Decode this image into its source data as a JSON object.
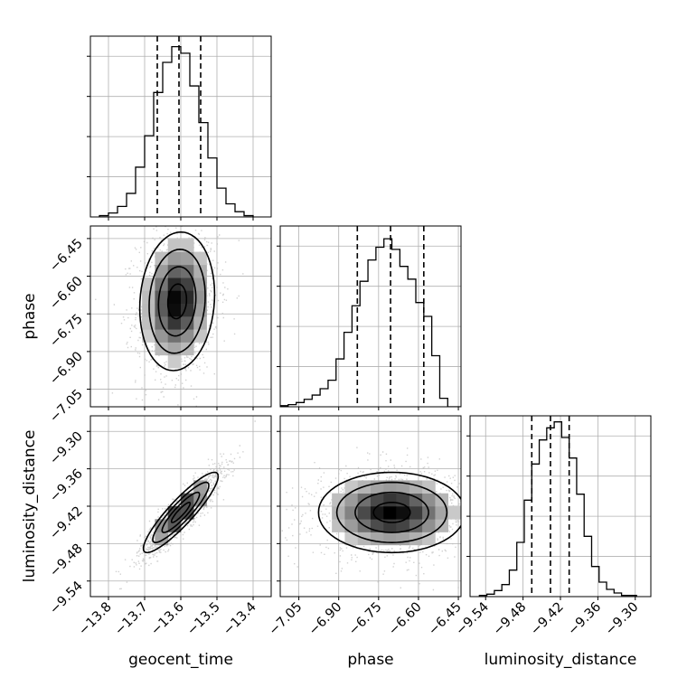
{
  "figure": {
    "type": "corner-plot",
    "parameters": [
      "geocent_time",
      "phase",
      "luminosity_distance"
    ],
    "axis_labels": {
      "x": [
        "geocent_time",
        "phase",
        "luminosity_distance"
      ],
      "y": [
        "phase",
        "luminosity_distance"
      ]
    },
    "colors": {
      "line": "#000000",
      "grid": "#b0b0b0",
      "scatter": "#bdbdbd"
    }
  },
  "chart_data": [
    {
      "type": "histogram",
      "panel": "geocent_time-marginal",
      "param": "geocent_time",
      "xlim": [
        -13.85,
        -13.35
      ],
      "xticks": [
        -13.8,
        -13.7,
        -13.6,
        -13.5,
        -13.4
      ],
      "bin_edges": [
        -13.825,
        -13.8,
        -13.775,
        -13.75,
        -13.725,
        -13.7,
        -13.675,
        -13.65,
        -13.625,
        -13.6,
        -13.575,
        -13.55,
        -13.525,
        -13.5,
        -13.475,
        -13.45,
        -13.425,
        -13.4
      ],
      "counts": [
        1,
        3,
        8,
        18,
        38,
        62,
        95,
        118,
        130,
        125,
        100,
        72,
        45,
        22,
        10,
        4,
        1
      ],
      "quantiles": [
        -13.665,
        -13.605,
        -13.545
      ],
      "ylim": [
        0,
        138
      ],
      "grid": true
    },
    {
      "type": "scatter-contour",
      "panel": "phase-vs-geocent_time",
      "x_param": "geocent_time",
      "y_param": "phase",
      "xlim": [
        -13.85,
        -13.35
      ],
      "ylim": [
        -7.12,
        -6.4
      ],
      "xticks": [
        -13.8,
        -13.7,
        -13.6,
        -13.5,
        -13.4
      ],
      "yticks": [
        -7.05,
        -6.9,
        -6.75,
        -6.6,
        -6.45
      ],
      "center": [
        -13.61,
        -6.7
      ],
      "sigma": [
        0.045,
        0.12
      ],
      "correlation": 0.1,
      "grid": true
    },
    {
      "type": "histogram",
      "panel": "phase-marginal",
      "param": "phase",
      "xlim": [
        -7.12,
        -6.44
      ],
      "xticks": [
        -7.05,
        -6.9,
        -6.75,
        -6.6,
        -6.45
      ],
      "bin_edges": [
        -7.12,
        -7.09,
        -7.06,
        -7.03,
        -7.0,
        -6.97,
        -6.94,
        -6.91,
        -6.88,
        -6.85,
        -6.82,
        -6.79,
        -6.76,
        -6.73,
        -6.7,
        -6.67,
        -6.64,
        -6.61,
        -6.58,
        -6.55,
        -6.52,
        -6.49,
        -6.46,
        -6.44
      ],
      "counts": [
        1,
        2,
        4,
        7,
        11,
        17,
        25,
        45,
        70,
        95,
        118,
        138,
        150,
        158,
        148,
        132,
        120,
        98,
        85,
        48,
        8,
        0,
        0
      ],
      "quantiles": [
        -6.83,
        -6.705,
        -6.58
      ],
      "ylim": [
        0,
        170
      ],
      "grid": true
    },
    {
      "type": "scatter-contour",
      "panel": "luminosity_distance-vs-geocent_time",
      "x_param": "geocent_time",
      "y_param": "luminosity_distance",
      "xlim": [
        -13.85,
        -13.35
      ],
      "ylim": [
        -9.565,
        -9.275
      ],
      "xticks": [
        -13.8,
        -13.7,
        -13.6,
        -13.5,
        -13.4
      ],
      "yticks": [
        -9.54,
        -9.48,
        -9.42,
        -9.36,
        -9.3
      ],
      "center": [
        -13.6,
        -9.43
      ],
      "sigma": [
        0.045,
        0.028
      ],
      "correlation": 0.9,
      "grid": true
    },
    {
      "type": "scatter-contour",
      "panel": "luminosity_distance-vs-phase",
      "x_param": "phase",
      "y_param": "luminosity_distance",
      "xlim": [
        -7.12,
        -6.44
      ],
      "ylim": [
        -9.565,
        -9.275
      ],
      "xticks": [
        -7.05,
        -6.9,
        -6.75,
        -6.6,
        -6.45
      ],
      "yticks": [
        -9.54,
        -9.48,
        -9.42,
        -9.36,
        -9.3
      ],
      "center": [
        -6.7,
        -9.43
      ],
      "sigma": [
        0.12,
        0.028
      ],
      "correlation": 0.0,
      "grid": true
    },
    {
      "type": "histogram",
      "panel": "luminosity_distance-marginal",
      "param": "luminosity_distance",
      "xlim": [
        -9.565,
        -9.275
      ],
      "xticks": [
        -9.54,
        -9.48,
        -9.42,
        -9.36,
        -9.3
      ],
      "bin_edges": [
        -9.55,
        -9.538,
        -9.526,
        -9.514,
        -9.502,
        -9.49,
        -9.478,
        -9.466,
        -9.454,
        -9.442,
        -9.43,
        -9.418,
        -9.406,
        -9.394,
        -9.382,
        -9.37,
        -9.358,
        -9.346,
        -9.334,
        -9.322,
        -9.31,
        -9.298
      ],
      "counts": [
        1,
        2,
        5,
        10,
        22,
        45,
        80,
        110,
        130,
        140,
        145,
        132,
        115,
        85,
        50,
        25,
        12,
        6,
        3,
        1,
        1
      ],
      "quantiles": [
        -9.466,
        -9.436,
        -9.406
      ],
      "ylim": [
        0,
        150
      ],
      "grid": true
    }
  ]
}
